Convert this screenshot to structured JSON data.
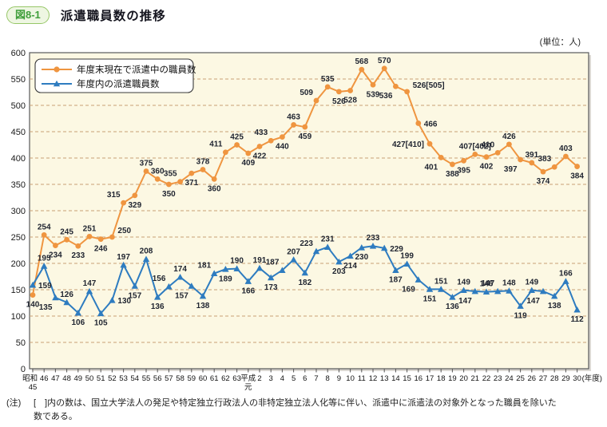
{
  "header": {
    "figure_label": "図8-1",
    "title": "派遣職員数の推移"
  },
  "note": {
    "label": "(注)",
    "line1": "[　]内の数は、国立大学法人の発足や特定独立行政法人の非特定独立法人化等に伴い、派遣中に派遣法の対象外となった職員を除いた",
    "line2": "数である。"
  },
  "chart_data": {
    "type": "line",
    "title": "派遣職員数の推移",
    "unit_label": "(単位：人)",
    "xlabel": "年度",
    "ylabel": "人",
    "ylim": [
      0,
      600
    ],
    "y_tick_step": 50,
    "grid": "horizontal-dashed",
    "grid_color": "#c7a176",
    "plot_bg_color": "#fcf8e3",
    "legend_position": "top-left",
    "x_axis_suffix": "(年度)",
    "x_labels": [
      "昭和45",
      "46",
      "47",
      "48",
      "49",
      "50",
      "51",
      "52",
      "53",
      "54",
      "55",
      "56",
      "57",
      "58",
      "59",
      "60",
      "61",
      "62",
      "63",
      "平成元",
      "2",
      "3",
      "4",
      "5",
      "6",
      "7",
      "8",
      "9",
      "10",
      "11",
      "12",
      "13",
      "14",
      "15",
      "16",
      "17",
      "18",
      "19",
      "20",
      "21",
      "22",
      "23",
      "24",
      "25",
      "26",
      "27",
      "28",
      "29",
      "30"
    ],
    "series": [
      {
        "name": "年度末現在で派遣中の職員数",
        "marker": "circle",
        "color": "#ef9540",
        "values": [
          140,
          254,
          234,
          245,
          233,
          251,
          246,
          250,
          315,
          329,
          375,
          360,
          350,
          355,
          371,
          378,
          360,
          411,
          425,
          409,
          422,
          433,
          440,
          463,
          459,
          509,
          535,
          526,
          528,
          568,
          539,
          570,
          536,
          526,
          466,
          427,
          401,
          388,
          395,
          407,
          402,
          410,
          426,
          397,
          391,
          374,
          383,
          403,
          384
        ],
        "labels": [
          "140",
          "254",
          "234",
          "245",
          "233",
          "251",
          "246",
          "250",
          "315",
          "329",
          "375",
          "360",
          "350",
          "355",
          "371",
          "378",
          "360",
          "411",
          "425",
          "409",
          "422",
          "433",
          "440",
          "463",
          "459",
          "509",
          "535",
          "526",
          "528",
          "568",
          "539",
          "570",
          "536",
          "526[505]",
          "466",
          "427[410]",
          "401",
          "388",
          "395",
          "407[402]",
          "402",
          "410",
          "426",
          "397",
          "391",
          "374",
          "383",
          "403",
          "384"
        ]
      },
      {
        "name": "年度内の派遣職員数",
        "marker": "triangle",
        "color": "#2e7cc0",
        "values": [
          159,
          195,
          135,
          126,
          106,
          147,
          105,
          130,
          197,
          157,
          208,
          136,
          156,
          174,
          157,
          138,
          181,
          189,
          190,
          166,
          191,
          173,
          187,
          207,
          182,
          223,
          231,
          203,
          214,
          230,
          233,
          229,
          187,
          199,
          169,
          151,
          151,
          136,
          149,
          147,
          146,
          147,
          148,
          119,
          149,
          147,
          138,
          166,
          112
        ],
        "labels": [
          "159",
          "195",
          "135",
          "126",
          "106",
          "147",
          "105",
          "130",
          "197",
          "157",
          "208",
          "136",
          "156",
          "174",
          "157",
          "138",
          "181",
          "189",
          "190",
          "166",
          "191",
          "173",
          "187",
          "207",
          "182",
          "223",
          "231",
          "203",
          "214",
          "230",
          "233",
          "229",
          "187",
          "199",
          "169",
          "151",
          "151",
          "136",
          "149",
          "147",
          "146",
          "147",
          "148",
          "119",
          "149",
          "147",
          "138",
          "166",
          "112"
        ]
      }
    ]
  }
}
